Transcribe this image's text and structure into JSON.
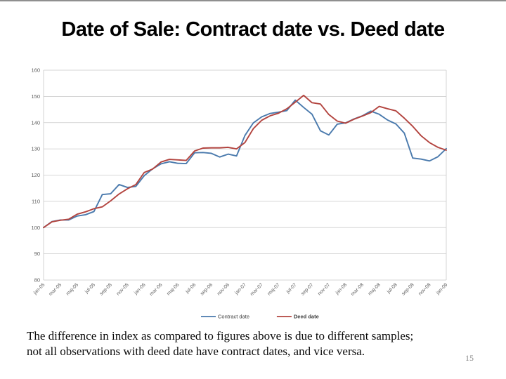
{
  "slide": {
    "title": "Date of Sale: Contract date vs. Deed date",
    "body_line1": "The difference in index as compared to figures above is due to different samples;",
    "body_line2": "not all observations with deed date have contract dates, and vice versa.",
    "page_number": "15"
  },
  "chart_data": {
    "type": "line",
    "title": "",
    "xlabel": "",
    "ylabel": "",
    "ylim": [
      80,
      160
    ],
    "ytick_step": 10,
    "grid": true,
    "legend_position": "bottom",
    "x_label_shown_every": 2,
    "x": [
      "jan-05",
      "feb-05",
      "mar-05",
      "apr-05",
      "maj-05",
      "jun-05",
      "jul-05",
      "aug-05",
      "sep-05",
      "okt-05",
      "nov-05",
      "dec-05",
      "jan-06",
      "feb-06",
      "mar-06",
      "apr-06",
      "maj-06",
      "jun-06",
      "jul-06",
      "aug-06",
      "sep-06",
      "okt-06",
      "nov-06",
      "dec-06",
      "jan-07",
      "feb-07",
      "mar-07",
      "apr-07",
      "maj-07",
      "jun-07",
      "jul-07",
      "aug-07",
      "sep-07",
      "okt-07",
      "nov-07",
      "dec-07",
      "jan-08",
      "feb-08",
      "mar-08",
      "apr-08",
      "maj-08",
      "jun-08",
      "jul-08",
      "aug-08",
      "sep-08",
      "okt-08",
      "nov-08",
      "dec-08",
      "jan-09"
    ],
    "series": [
      {
        "name": "Contract date",
        "color": "#4a7aad",
        "values": [
          100.0,
          102.3,
          102.9,
          102.9,
          104.4,
          104.9,
          106.1,
          112.6,
          112.9,
          116.4,
          115.3,
          115.7,
          119.8,
          122.4,
          124.3,
          125.1,
          124.5,
          124.4,
          128.5,
          128.6,
          128.3,
          126.9,
          128.0,
          127.3,
          135.1,
          139.9,
          142.2,
          143.5,
          144.0,
          144.6,
          148.6,
          145.8,
          143.2,
          136.9,
          135.3,
          139.4,
          139.9,
          141.4,
          142.6,
          144.4,
          143.2,
          141.0,
          139.5,
          136.0,
          126.5,
          126.1,
          125.4,
          127.0,
          130.1
        ]
      },
      {
        "name": "Deed date",
        "color": "#b3443f",
        "values": [
          100.0,
          102.2,
          102.8,
          103.2,
          105.1,
          106.0,
          107.2,
          107.9,
          110.2,
          112.8,
          114.8,
          116.4,
          121.0,
          122.3,
          125.0,
          126.0,
          125.8,
          125.6,
          129.2,
          130.3,
          130.4,
          130.4,
          130.6,
          130.0,
          132.4,
          137.7,
          140.9,
          142.6,
          143.6,
          145.3,
          147.8,
          150.4,
          147.6,
          147.1,
          143.1,
          140.6,
          139.8,
          141.3,
          142.5,
          143.8,
          146.2,
          145.3,
          144.5,
          141.7,
          138.6,
          135.0,
          132.4,
          130.6,
          129.5
        ]
      }
    ],
    "axis_text_color": "#5a5a5a",
    "gridline_color": "#c9c9c9"
  }
}
